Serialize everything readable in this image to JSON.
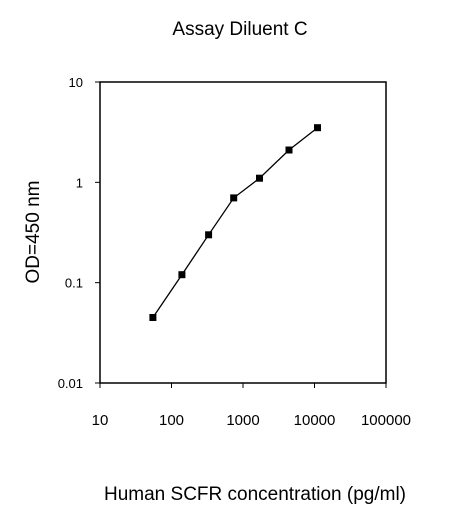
{
  "chart_data": {
    "type": "line",
    "title": "Assay Diluent C",
    "xlabel": "Human SCFR concentration (pg/ml)",
    "ylabel": "OD=450 nm",
    "x_scale": "log",
    "y_scale": "log",
    "xlim": [
      10,
      100000
    ],
    "ylim": [
      0.01,
      10
    ],
    "x_ticks": [
      10,
      100,
      1000,
      10000,
      100000
    ],
    "x_tick_labels": [
      "10",
      "100",
      "1000",
      "10000",
      "100000"
    ],
    "y_ticks": [
      0.01,
      0.1,
      1,
      10
    ],
    "y_tick_labels": [
      "0.01",
      "0.1",
      "1",
      "10"
    ],
    "grid": false,
    "legend": "none",
    "series": [
      {
        "x": [
          55,
          140,
          330,
          740,
          1700,
          4400,
          11000
        ],
        "y": [
          0.045,
          0.12,
          0.3,
          0.7,
          1.1,
          2.1,
          3.5
        ],
        "color": "#000000",
        "marker": "square"
      }
    ]
  }
}
